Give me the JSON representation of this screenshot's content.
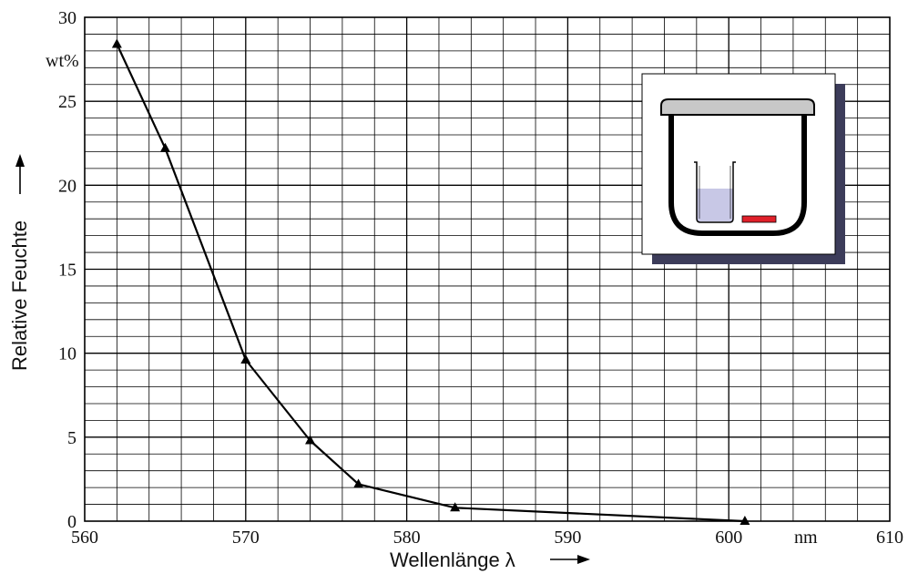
{
  "chart_data": {
    "type": "line",
    "title": "",
    "xlabel": "Wellenlänge λ",
    "ylabel": "Relative Feuchte",
    "x_unit": "nm",
    "y_unit": "wt%",
    "xlim": [
      560,
      610
    ],
    "ylim": [
      0,
      30
    ],
    "grid": true,
    "x_ticks": [
      560,
      570,
      580,
      590,
      600,
      610
    ],
    "y_ticks": [
      0,
      5,
      10,
      15,
      20,
      25,
      30
    ],
    "marker": "triangle",
    "series": [
      {
        "x": [
          562,
          565,
          570,
          574,
          577,
          583,
          601
        ],
        "y": [
          28.4,
          22.2,
          9.6,
          4.8,
          2.2,
          0.8,
          0.0
        ]
      }
    ],
    "inset": {
      "description_icon": "desiccator-with-beaker-icon",
      "colors": {
        "liquid": "#c8c8e6",
        "sample": "#e0202a",
        "shadow": "#3c3c5a",
        "lid": "#c8c8c8"
      }
    }
  }
}
